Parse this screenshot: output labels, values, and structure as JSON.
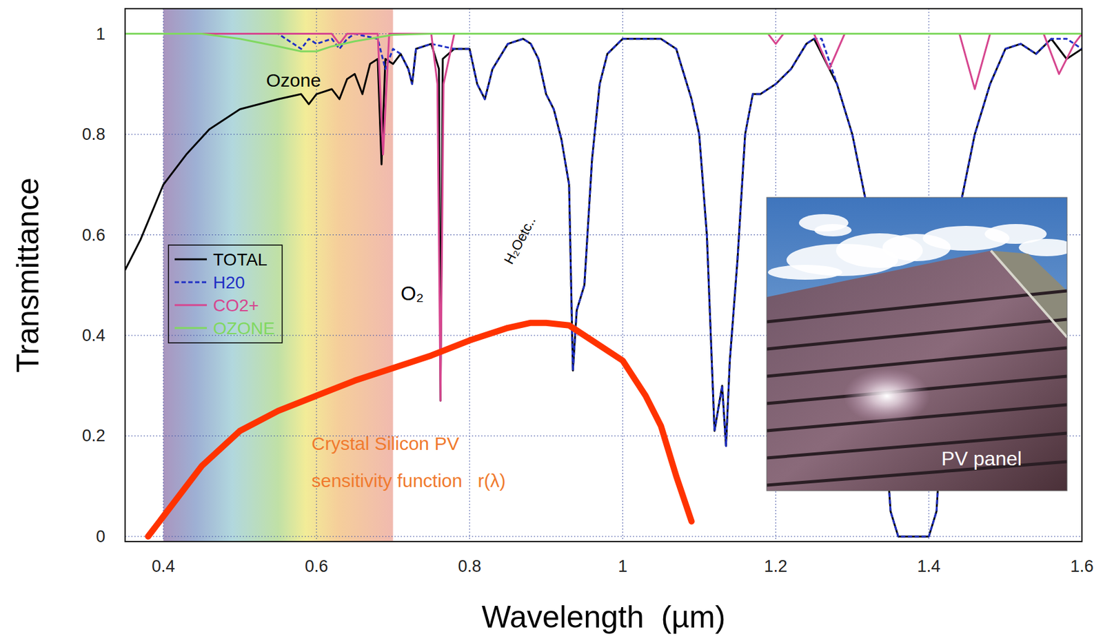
{
  "chart_data": {
    "type": "line",
    "x_label": "Wavelength  (µm)",
    "y_label": "Transmittance",
    "xlim": [
      0.35,
      1.6
    ],
    "ylim": [
      -0.01,
      1.05
    ],
    "xticks": [
      0.4,
      0.6,
      0.8,
      1,
      1.2,
      1.4,
      1.6
    ],
    "yticks": [
      0,
      0.2,
      0.4,
      0.6,
      0.8,
      1
    ],
    "grid": true,
    "legend": "left",
    "visible_band": [
      0.4,
      0.7
    ],
    "series": [
      {
        "name": "TOTAL",
        "color": "#000000",
        "line_style": "solid",
        "x": [
          0.35,
          0.37,
          0.4,
          0.43,
          0.46,
          0.5,
          0.55,
          0.58,
          0.59,
          0.6,
          0.62,
          0.63,
          0.64,
          0.65,
          0.66,
          0.67,
          0.68,
          0.685,
          0.69,
          0.7,
          0.71,
          0.72,
          0.725,
          0.73,
          0.75,
          0.76,
          0.762,
          0.765,
          0.78,
          0.8,
          0.81,
          0.82,
          0.83,
          0.85,
          0.87,
          0.88,
          0.89,
          0.9,
          0.91,
          0.92,
          0.93,
          0.935,
          0.94,
          0.95,
          0.96,
          0.97,
          0.98,
          1.0,
          1.02,
          1.05,
          1.07,
          1.09,
          1.1,
          1.11,
          1.12,
          1.13,
          1.135,
          1.14,
          1.15,
          1.16,
          1.17,
          1.18,
          1.2,
          1.22,
          1.24,
          1.25,
          1.26,
          1.28,
          1.3,
          1.32,
          1.33,
          1.35,
          1.36,
          1.4,
          1.41,
          1.42,
          1.44,
          1.46,
          1.48,
          1.5,
          1.52,
          1.54,
          1.56,
          1.58,
          1.6
        ],
        "values": [
          0.53,
          0.59,
          0.7,
          0.76,
          0.81,
          0.85,
          0.87,
          0.88,
          0.86,
          0.88,
          0.89,
          0.87,
          0.91,
          0.92,
          0.88,
          0.94,
          0.95,
          0.74,
          0.95,
          0.94,
          0.96,
          0.93,
          0.9,
          0.97,
          0.98,
          0.93,
          0.27,
          0.95,
          0.97,
          0.97,
          0.9,
          0.87,
          0.93,
          0.98,
          0.99,
          0.98,
          0.95,
          0.88,
          0.85,
          0.79,
          0.7,
          0.33,
          0.45,
          0.5,
          0.75,
          0.9,
          0.96,
          0.99,
          0.99,
          0.99,
          0.97,
          0.87,
          0.8,
          0.6,
          0.21,
          0.3,
          0.18,
          0.35,
          0.55,
          0.8,
          0.88,
          0.88,
          0.9,
          0.93,
          0.98,
          0.99,
          0.96,
          0.9,
          0.8,
          0.65,
          0.5,
          0.05,
          0.0,
          0.0,
          0.05,
          0.3,
          0.65,
          0.8,
          0.9,
          0.97,
          0.98,
          0.96,
          0.99,
          0.95,
          0.97
        ]
      },
      {
        "name": "H20",
        "color": "#1f2fc4",
        "line_style": "dashed",
        "x": [
          0.35,
          0.55,
          0.57,
          0.58,
          0.59,
          0.6,
          0.62,
          0.63,
          0.64,
          0.65,
          0.68,
          0.69,
          0.7,
          0.71,
          0.72,
          0.725,
          0.73,
          0.75,
          0.78,
          0.8,
          0.81,
          0.82,
          0.83,
          0.85,
          0.87,
          0.88,
          0.89,
          0.9,
          0.91,
          0.92,
          0.93,
          0.935,
          0.94,
          0.95,
          0.96,
          0.97,
          0.98,
          1.0,
          1.02,
          1.05,
          1.07,
          1.09,
          1.1,
          1.11,
          1.12,
          1.13,
          1.135,
          1.14,
          1.15,
          1.16,
          1.17,
          1.18,
          1.2,
          1.22,
          1.24,
          1.25,
          1.26,
          1.28,
          1.3,
          1.32,
          1.33,
          1.35,
          1.36,
          1.4,
          1.41,
          1.42,
          1.44,
          1.46,
          1.48,
          1.5,
          1.52,
          1.54,
          1.56,
          1.58,
          1.6
        ],
        "values": [
          1.0,
          1.0,
          0.98,
          0.97,
          0.99,
          0.98,
          0.99,
          0.97,
          0.99,
          1.0,
          0.99,
          0.93,
          0.97,
          0.96,
          0.93,
          0.9,
          0.97,
          0.98,
          0.97,
          0.97,
          0.9,
          0.87,
          0.93,
          0.98,
          0.99,
          0.98,
          0.95,
          0.88,
          0.85,
          0.79,
          0.7,
          0.33,
          0.45,
          0.5,
          0.75,
          0.9,
          0.96,
          0.99,
          0.99,
          0.99,
          0.97,
          0.87,
          0.8,
          0.6,
          0.21,
          0.3,
          0.18,
          0.35,
          0.55,
          0.8,
          0.88,
          0.88,
          0.9,
          0.93,
          0.98,
          0.99,
          0.99,
          0.9,
          0.8,
          0.65,
          0.5,
          0.05,
          0.0,
          0.0,
          0.05,
          0.3,
          0.65,
          0.8,
          0.9,
          0.97,
          0.98,
          0.96,
          0.99,
          0.99,
          0.97
        ]
      },
      {
        "name": "CO2+",
        "color": "#d6468f",
        "line_style": "solid",
        "x": [
          0.35,
          0.62,
          0.63,
          0.64,
          0.68,
          0.687,
          0.695,
          0.75,
          0.758,
          0.762,
          0.766,
          0.78,
          1.19,
          1.2,
          1.21,
          1.25,
          1.27,
          1.29,
          1.44,
          1.46,
          1.48,
          1.55,
          1.57,
          1.59,
          1.6
        ],
        "values": [
          1,
          1,
          0.98,
          1,
          1,
          0.76,
          1,
          1,
          0.9,
          0.27,
          0.9,
          1,
          1,
          0.98,
          1,
          1,
          0.93,
          1,
          1,
          0.89,
          1,
          1,
          0.92,
          0.98,
          1
        ]
      },
      {
        "name": "OZONE",
        "color": "#80d860",
        "line_style": "solid",
        "x": [
          0.35,
          0.45,
          0.5,
          0.55,
          0.58,
          0.6,
          0.62,
          0.65,
          0.7,
          0.75,
          1.6
        ],
        "values": [
          1,
          1,
          0.99,
          0.975,
          0.965,
          0.965,
          0.975,
          0.985,
          0.998,
          1,
          1
        ]
      }
    ],
    "sensitivity": {
      "label": [
        "Crystal Silicon PV",
        "sensitivity function   r(λ)"
      ],
      "color": "#ff3300",
      "x": [
        0.38,
        0.4,
        0.45,
        0.5,
        0.55,
        0.6,
        0.65,
        0.7,
        0.75,
        0.8,
        0.85,
        0.88,
        0.9,
        0.93,
        0.95,
        1.0,
        1.03,
        1.05,
        1.07,
        1.09
      ],
      "values": [
        0,
        0.04,
        0.14,
        0.21,
        0.25,
        0.28,
        0.31,
        0.335,
        0.36,
        0.39,
        0.415,
        0.425,
        0.425,
        0.42,
        0.4,
        0.35,
        0.28,
        0.22,
        0.12,
        0.03
      ]
    },
    "annotations": [
      "Ozone",
      "O₂",
      "H₂Oetc.."
    ],
    "inset": {
      "label": "PV panel"
    }
  }
}
